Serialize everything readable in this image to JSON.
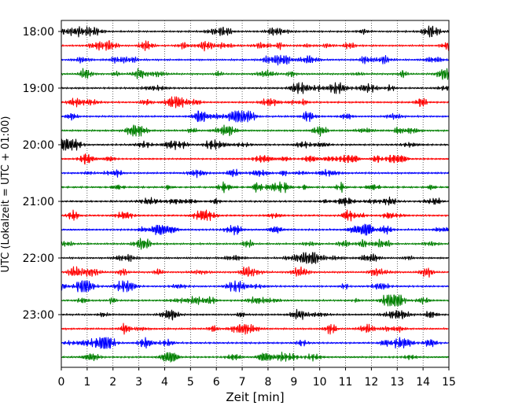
{
  "chart_data": {
    "type": "line",
    "title": "",
    "xlabel": "Zeit  [min]",
    "ylabel": "UTC (Lokalzeit = UTC + 01:00)",
    "xlim": [
      0,
      15
    ],
    "xticks": [
      0,
      1,
      2,
      3,
      4,
      5,
      6,
      7,
      8,
      9,
      10,
      11,
      12,
      13,
      14,
      15
    ],
    "yticks": [
      "18:00",
      "19:00",
      "20:00",
      "21:00",
      "22:00",
      "23:00"
    ],
    "grid": "vertical dotted",
    "trace_interval_minutes": 15,
    "start_time": "18:00",
    "trace_count": 24,
    "colors": [
      "#000000",
      "#ff0000",
      "#0000ff",
      "#008000"
    ]
  }
}
